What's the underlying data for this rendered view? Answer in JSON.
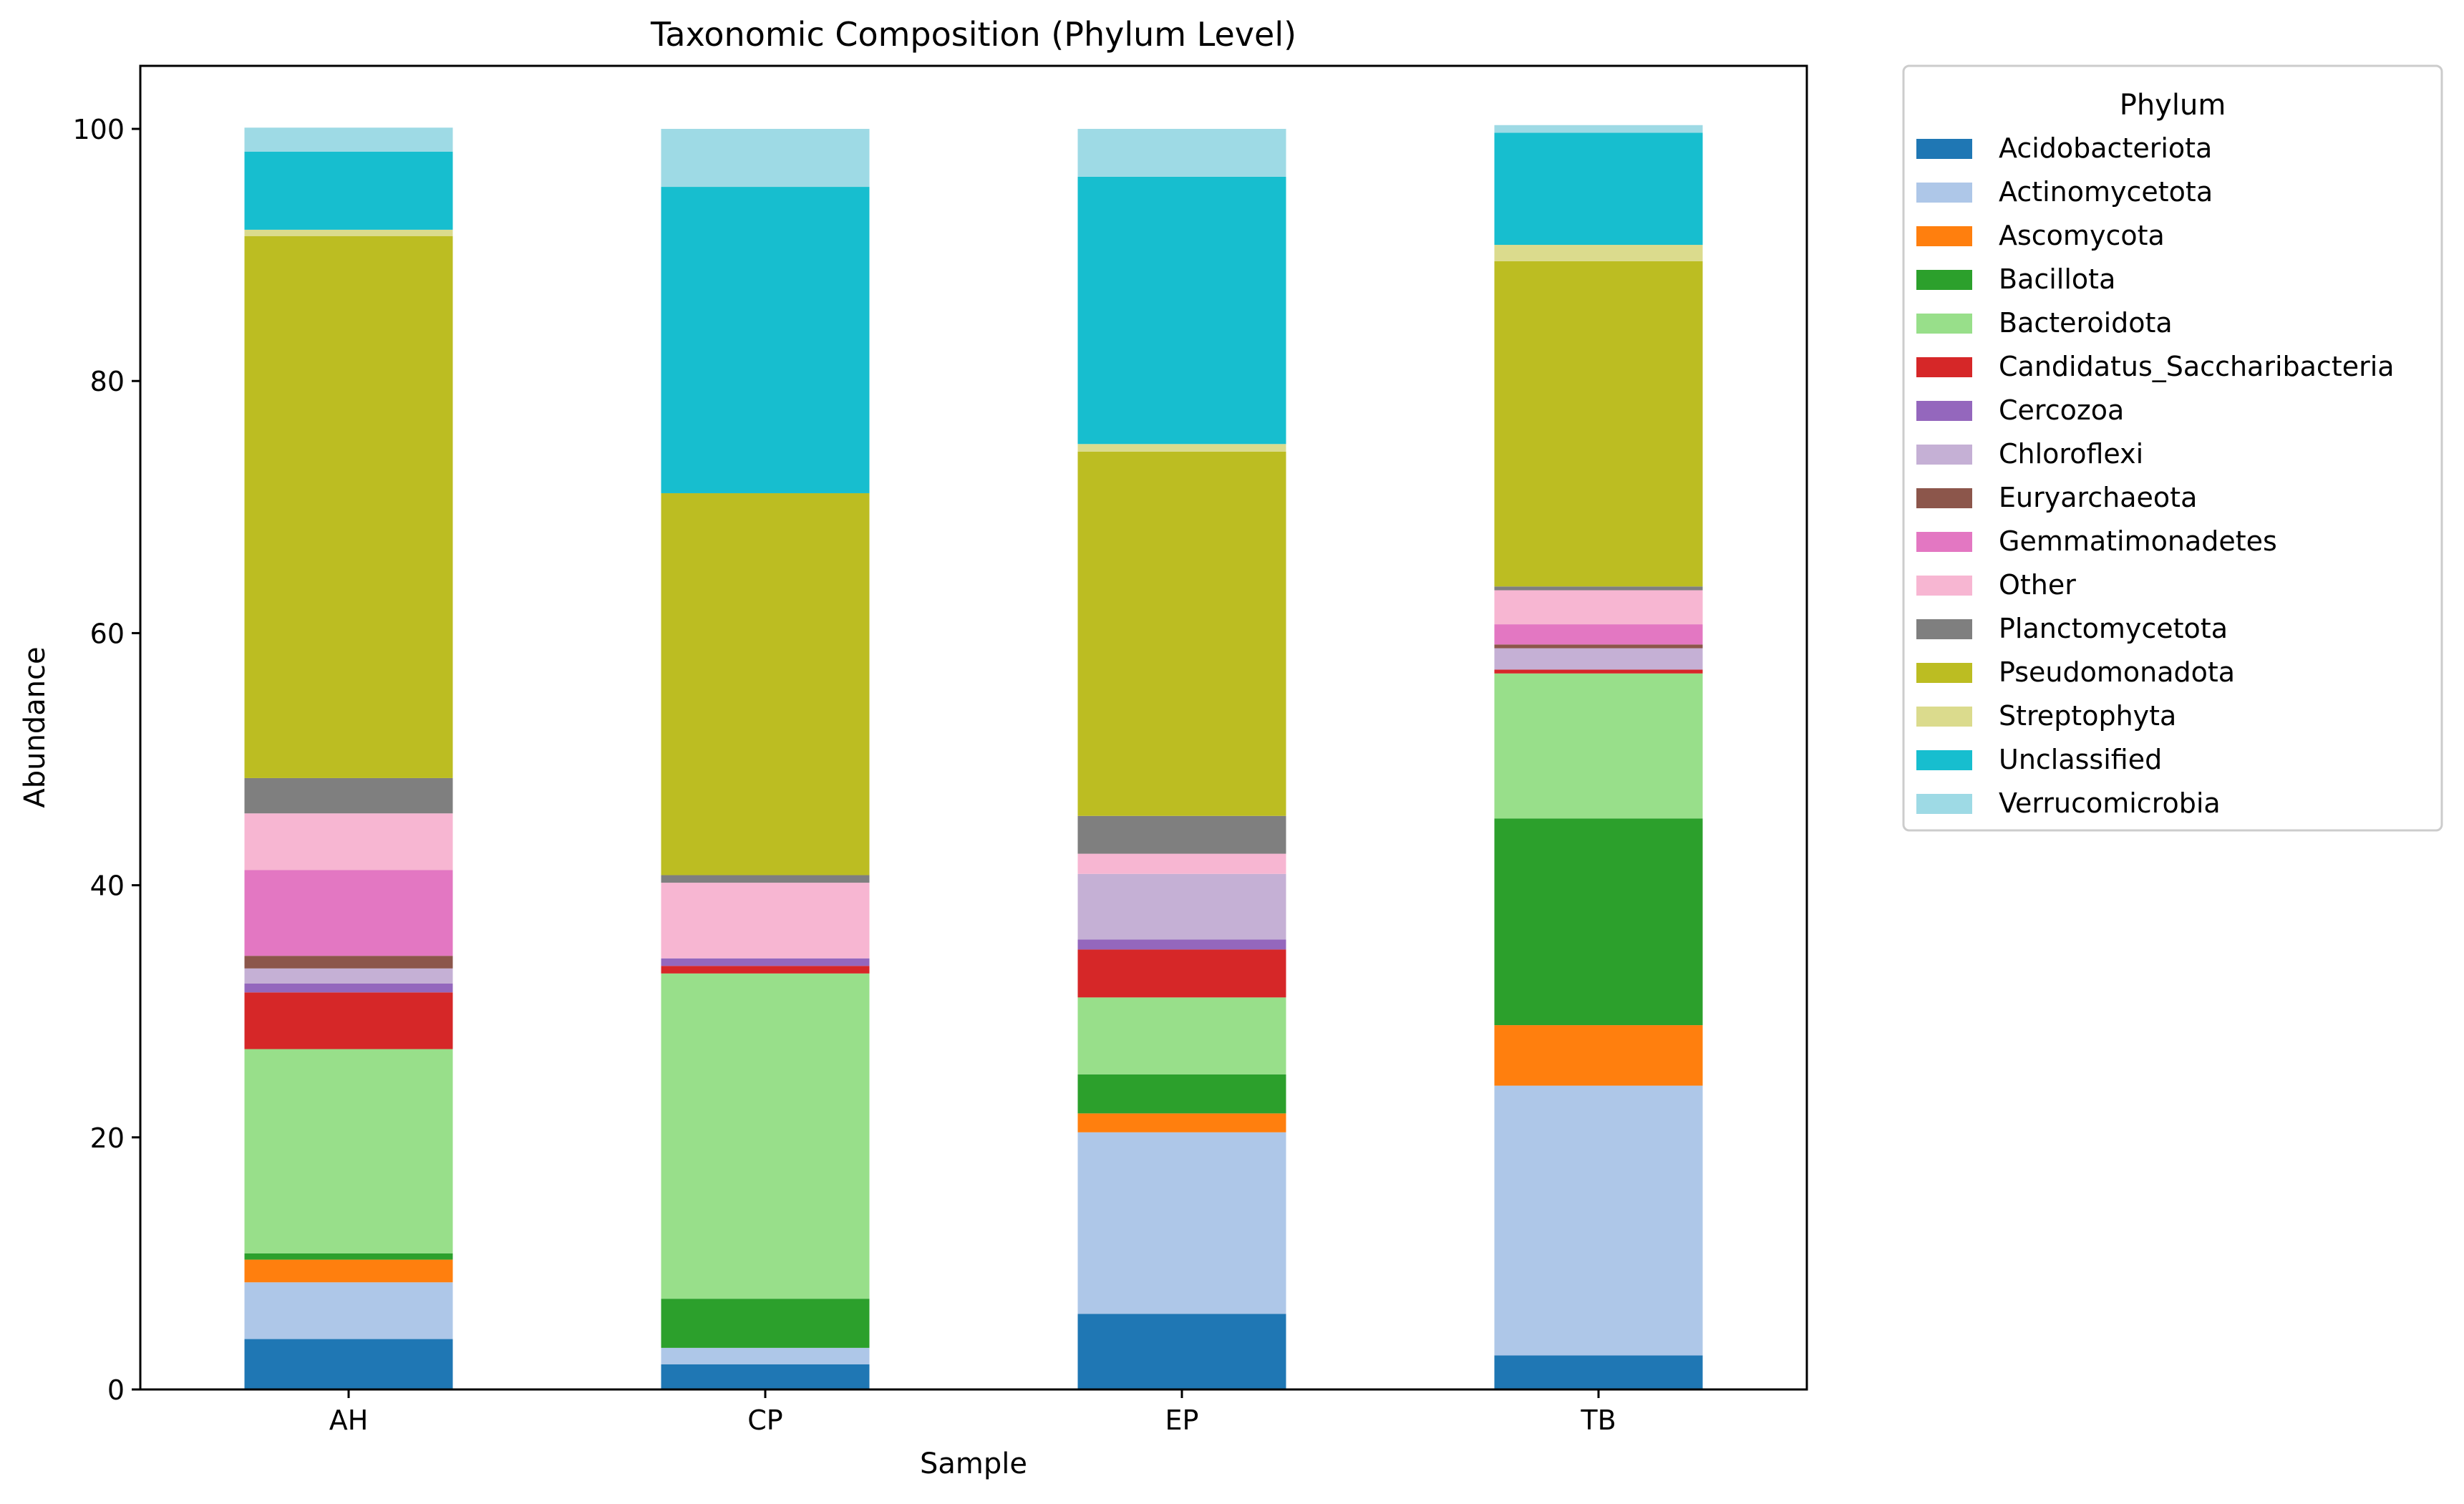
{
  "chart_data": {
    "type": "bar",
    "stacked": true,
    "title": "Taxonomic Composition (Phylum Level)",
    "xlabel": "Sample",
    "ylabel": "Abundance",
    "ylim": [
      0,
      105
    ],
    "yticks": [
      0,
      20,
      40,
      60,
      80,
      100
    ],
    "grid": false,
    "legend_placement": "outside-top-right",
    "legend_title": "Phylum",
    "categories": [
      "AH",
      "CP",
      "EP",
      "TB"
    ],
    "series": [
      {
        "name": "Acidobacteriota",
        "color": "#1f77b4",
        "values": [
          4.0,
          2.0,
          6.0,
          2.7
        ]
      },
      {
        "name": "Actinomycetota",
        "color": "#aec7e8",
        "values": [
          4.5,
          1.3,
          14.4,
          21.4
        ]
      },
      {
        "name": "Ascomycota",
        "color": "#ff7f0e",
        "values": [
          1.8,
          0.0,
          1.5,
          4.8
        ]
      },
      {
        "name": "Bacillota",
        "color": "#2ca02c",
        "values": [
          0.5,
          3.9,
          3.1,
          16.4
        ]
      },
      {
        "name": "Bacteroidota",
        "color": "#98df8a",
        "values": [
          16.2,
          25.8,
          6.1,
          11.5
        ]
      },
      {
        "name": "Candidatus_Saccharibacteria",
        "color": "#d62728",
        "values": [
          4.5,
          0.6,
          3.8,
          0.3
        ]
      },
      {
        "name": "Cercozoa",
        "color": "#9467bd",
        "values": [
          0.7,
          0.6,
          0.8,
          0.0
        ]
      },
      {
        "name": "Chloroflexi",
        "color": "#c5b0d5",
        "values": [
          1.2,
          0.0,
          5.2,
          1.7
        ]
      },
      {
        "name": "Euryarchaeota",
        "color": "#8c564b",
        "values": [
          1.0,
          0.0,
          0.0,
          0.3
        ]
      },
      {
        "name": "Gemmatimonadetes",
        "color": "#e377c2",
        "values": [
          6.8,
          0.0,
          0.0,
          1.6
        ]
      },
      {
        "name": "Other",
        "color": "#f7b6d2",
        "values": [
          4.5,
          6.0,
          1.6,
          2.7
        ]
      },
      {
        "name": "Planctomycetota",
        "color": "#7f7f7f",
        "values": [
          2.8,
          0.6,
          3.0,
          0.3
        ]
      },
      {
        "name": "Pseudomonadota",
        "color": "#bcbd22",
        "values": [
          43.0,
          30.3,
          28.9,
          25.8
        ]
      },
      {
        "name": "Streptophyta",
        "color": "#dbdb8d",
        "values": [
          0.5,
          0.0,
          0.6,
          1.3
        ]
      },
      {
        "name": "Unclassified",
        "color": "#17becf",
        "values": [
          6.2,
          24.3,
          21.2,
          8.9
        ]
      },
      {
        "name": "Verrucomicrobia",
        "color": "#9edae5",
        "values": [
          1.9,
          4.6,
          3.8,
          0.6
        ]
      }
    ]
  }
}
